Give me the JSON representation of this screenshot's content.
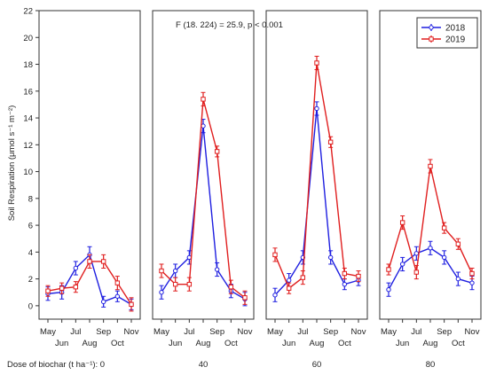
{
  "chart_data": {
    "type": "line",
    "ylabel": "Soil Respiration (μmol s⁻¹ m⁻²)",
    "ylim": [
      -1,
      22
    ],
    "yticks": [
      0,
      2,
      4,
      6,
      8,
      10,
      12,
      14,
      16,
      18,
      20,
      22
    ],
    "months": [
      "May",
      "Jun",
      "Jul",
      "Aug",
      "Sep",
      "Oct",
      "Nov"
    ],
    "dose_caption": "Dose of biochar (t ha⁻¹): 0",
    "annotation": "F (18. 224) = 25.9,  p < 0.001",
    "legend_position": "top-right",
    "colors": {
      "2018": "#1f1fe0",
      "2019": "#e01f1f"
    },
    "panels": [
      {
        "dose": "0",
        "series": [
          {
            "name": "2018",
            "x": [
              0.0,
              1.0,
              2.0,
              3.0,
              4.0,
              5.0,
              6.0
            ],
            "values": [
              0.9,
              1.0,
              2.8,
              3.8,
              0.3,
              0.7,
              0.1
            ],
            "err": [
              0.5,
              0.5,
              0.5,
              0.6,
              0.4,
              0.4,
              0.4
            ]
          },
          {
            "name": "2019",
            "x": [
              0.0,
              1.0,
              2.0,
              3.0,
              4.0,
              5.0,
              6.0
            ],
            "values": [
              1.1,
              1.3,
              1.4,
              3.3,
              3.3,
              1.7,
              0.1
            ],
            "err": [
              0.4,
              0.4,
              0.4,
              0.5,
              0.5,
              0.5,
              0.5
            ]
          }
        ]
      },
      {
        "dose": "40",
        "series": [
          {
            "name": "2018",
            "x": [
              0.0,
              1.0,
              2.0,
              3.0,
              4.0,
              5.0,
              6.0
            ],
            "values": [
              1.0,
              2.6,
              3.6,
              13.4,
              2.7,
              1.1,
              0.5
            ],
            "err": [
              0.5,
              0.5,
              0.5,
              0.5,
              0.5,
              0.5,
              0.5
            ]
          },
          {
            "name": "2019",
            "x": [
              0.0,
              1.0,
              2.0,
              3.0,
              4.0,
              5.0,
              6.0
            ],
            "values": [
              2.6,
              1.6,
              1.6,
              15.4,
              11.5,
              1.4,
              0.6
            ],
            "err": [
              0.5,
              0.5,
              0.5,
              0.5,
              0.4,
              0.5,
              0.5
            ]
          }
        ]
      },
      {
        "dose": "60",
        "series": [
          {
            "name": "2018",
            "x": [
              0.0,
              1.0,
              2.0,
              3.0,
              4.0,
              5.0,
              6.0
            ],
            "values": [
              0.8,
              1.9,
              3.6,
              14.7,
              3.6,
              1.6,
              1.9
            ],
            "err": [
              0.5,
              0.5,
              0.5,
              0.5,
              0.5,
              0.4,
              0.4
            ]
          },
          {
            "name": "2019",
            "x": [
              0.0,
              1.0,
              2.0,
              3.0,
              4.0,
              5.0,
              6.0
            ],
            "values": [
              3.8,
              1.3,
              2.1,
              18.1,
              12.2,
              2.4,
              2.2
            ],
            "err": [
              0.5,
              0.4,
              0.5,
              0.5,
              0.4,
              0.4,
              0.4
            ]
          }
        ]
      },
      {
        "dose": "80",
        "series": [
          {
            "name": "2018",
            "x": [
              0.0,
              1.0,
              2.0,
              3.0,
              4.0,
              5.0,
              6.0
            ],
            "values": [
              1.2,
              3.1,
              3.9,
              4.3,
              3.6,
              2.0,
              1.7
            ],
            "err": [
              0.5,
              0.5,
              0.5,
              0.5,
              0.5,
              0.5,
              0.5
            ]
          },
          {
            "name": "2019",
            "x": [
              0.0,
              1.0,
              2.0,
              3.0,
              4.0,
              5.0,
              6.0
            ],
            "values": [
              2.7,
              6.2,
              2.5,
              10.4,
              5.8,
              4.6,
              2.4
            ],
            "err": [
              0.4,
              0.5,
              0.5,
              0.5,
              0.4,
              0.4,
              0.4
            ]
          }
        ]
      }
    ]
  }
}
